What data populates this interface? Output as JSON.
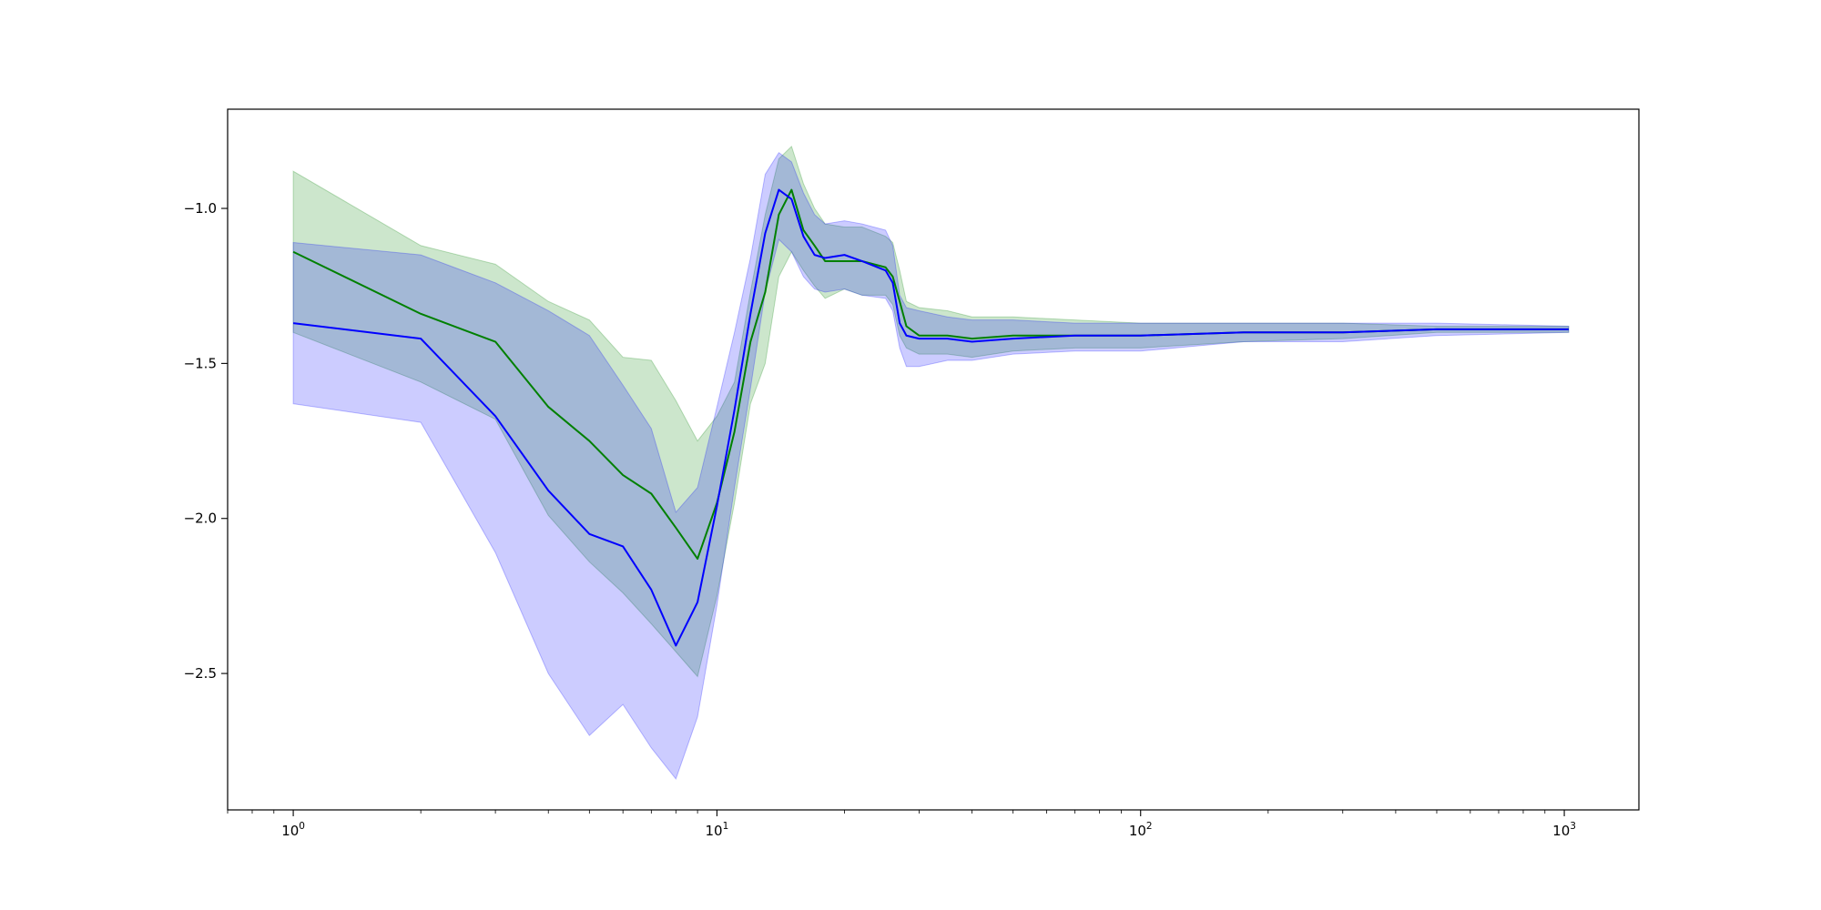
{
  "chart_data": {
    "type": "line",
    "title": "",
    "xlabel": "",
    "ylabel": "",
    "x_scale": "log",
    "y_scale": "linear",
    "xlim": [
      0.7,
      1500
    ],
    "ylim": [
      -2.94,
      -0.68
    ],
    "grid": false,
    "legend": "none",
    "x_ticks": [
      {
        "base": "10",
        "exp": "0",
        "value": 1
      },
      {
        "base": "10",
        "exp": "1",
        "value": 10
      },
      {
        "base": "10",
        "exp": "2",
        "value": 100
      },
      {
        "base": "10",
        "exp": "3",
        "value": 1000
      }
    ],
    "y_ticks": [
      {
        "label": "−1.0",
        "value": -1.0
      },
      {
        "label": "−1.5",
        "value": -1.5
      },
      {
        "label": "−2.0",
        "value": -2.0
      },
      {
        "label": "−2.5",
        "value": -2.5
      }
    ],
    "series": [
      {
        "color": "#008000",
        "band_color": "#008000",
        "band_opacity": 0.2,
        "points": [
          {
            "x": 1,
            "y": -1.14,
            "lo": -1.4,
            "hi": -0.88
          },
          {
            "x": 2,
            "y": -1.34,
            "lo": -1.56,
            "hi": -1.12
          },
          {
            "x": 3,
            "y": -1.43,
            "lo": -1.68,
            "hi": -1.18
          },
          {
            "x": 4,
            "y": -1.64,
            "lo": -1.99,
            "hi": -1.3
          },
          {
            "x": 5,
            "y": -1.75,
            "lo": -2.14,
            "hi": -1.36
          },
          {
            "x": 6,
            "y": -1.86,
            "lo": -2.24,
            "hi": -1.48
          },
          {
            "x": 7,
            "y": -1.92,
            "lo": -2.34,
            "hi": -1.49
          },
          {
            "x": 8,
            "y": -2.03,
            "lo": -2.43,
            "hi": -1.62
          },
          {
            "x": 9,
            "y": -2.13,
            "lo": -2.51,
            "hi": -1.75
          },
          {
            "x": 10,
            "y": -1.95,
            "lo": -2.25,
            "hi": -1.67
          },
          {
            "x": 11,
            "y": -1.72,
            "lo": -1.95,
            "hi": -1.56
          },
          {
            "x": 12,
            "y": -1.43,
            "lo": -1.63,
            "hi": -1.27
          },
          {
            "x": 13,
            "y": -1.27,
            "lo": -1.5,
            "hi": -1.02
          },
          {
            "x": 14,
            "y": -1.02,
            "lo": -1.22,
            "hi": -0.84
          },
          {
            "x": 15,
            "y": -0.94,
            "lo": -1.14,
            "hi": -0.8
          },
          {
            "x": 16,
            "y": -1.07,
            "lo": -1.2,
            "hi": -0.92
          },
          {
            "x": 17,
            "y": -1.12,
            "lo": -1.25,
            "hi": -1.0
          },
          {
            "x": 18,
            "y": -1.17,
            "lo": -1.29,
            "hi": -1.05
          },
          {
            "x": 20,
            "y": -1.17,
            "lo": -1.26,
            "hi": -1.06
          },
          {
            "x": 22,
            "y": -1.17,
            "lo": -1.28,
            "hi": -1.06
          },
          {
            "x": 25,
            "y": -1.19,
            "lo": -1.28,
            "hi": -1.09
          },
          {
            "x": 26,
            "y": -1.22,
            "lo": -1.31,
            "hi": -1.11
          },
          {
            "x": 27,
            "y": -1.3,
            "lo": -1.41,
            "hi": -1.2
          },
          {
            "x": 28,
            "y": -1.38,
            "lo": -1.45,
            "hi": -1.3
          },
          {
            "x": 30,
            "y": -1.41,
            "lo": -1.47,
            "hi": -1.32
          },
          {
            "x": 35,
            "y": -1.41,
            "lo": -1.47,
            "hi": -1.33
          },
          {
            "x": 40,
            "y": -1.42,
            "lo": -1.48,
            "hi": -1.35
          },
          {
            "x": 50,
            "y": -1.41,
            "lo": -1.46,
            "hi": -1.35
          },
          {
            "x": 70,
            "y": -1.41,
            "lo": -1.45,
            "hi": -1.36
          },
          {
            "x": 100,
            "y": -1.41,
            "lo": -1.45,
            "hi": -1.37
          },
          {
            "x": 175,
            "y": -1.4,
            "lo": -1.43,
            "hi": -1.37
          },
          {
            "x": 300,
            "y": -1.4,
            "lo": -1.42,
            "hi": -1.37
          },
          {
            "x": 500,
            "y": -1.39,
            "lo": -1.4,
            "hi": -1.38
          },
          {
            "x": 1024,
            "y": -1.39,
            "lo": -1.4,
            "hi": -1.38
          }
        ]
      },
      {
        "color": "#0000ff",
        "band_color": "#0000ff",
        "band_opacity": 0.2,
        "points": [
          {
            "x": 1,
            "y": -1.37,
            "lo": -1.63,
            "hi": -1.11
          },
          {
            "x": 2,
            "y": -1.42,
            "lo": -1.69,
            "hi": -1.15
          },
          {
            "x": 3,
            "y": -1.67,
            "lo": -2.11,
            "hi": -1.24
          },
          {
            "x": 4,
            "y": -1.91,
            "lo": -2.5,
            "hi": -1.33
          },
          {
            "x": 5,
            "y": -2.05,
            "lo": -2.7,
            "hi": -1.41
          },
          {
            "x": 6,
            "y": -2.09,
            "lo": -2.6,
            "hi": -1.57
          },
          {
            "x": 7,
            "y": -2.23,
            "lo": -2.74,
            "hi": -1.71
          },
          {
            "x": 8,
            "y": -2.41,
            "lo": -2.84,
            "hi": -1.98
          },
          {
            "x": 9,
            "y": -2.27,
            "lo": -2.64,
            "hi": -1.9
          },
          {
            "x": 10,
            "y": -1.96,
            "lo": -2.28,
            "hi": -1.64
          },
          {
            "x": 11,
            "y": -1.65,
            "lo": -1.9,
            "hi": -1.4
          },
          {
            "x": 12,
            "y": -1.34,
            "lo": -1.58,
            "hi": -1.16
          },
          {
            "x": 13,
            "y": -1.08,
            "lo": -1.27,
            "hi": -0.89
          },
          {
            "x": 14,
            "y": -0.94,
            "lo": -1.1,
            "hi": -0.82
          },
          {
            "x": 15,
            "y": -0.97,
            "lo": -1.14,
            "hi": -0.85
          },
          {
            "x": 16,
            "y": -1.09,
            "lo": -1.22,
            "hi": -0.95
          },
          {
            "x": 17,
            "y": -1.15,
            "lo": -1.26,
            "hi": -1.02
          },
          {
            "x": 18,
            "y": -1.16,
            "lo": -1.27,
            "hi": -1.05
          },
          {
            "x": 20,
            "y": -1.15,
            "lo": -1.26,
            "hi": -1.04
          },
          {
            "x": 22,
            "y": -1.17,
            "lo": -1.28,
            "hi": -1.05
          },
          {
            "x": 25,
            "y": -1.2,
            "lo": -1.29,
            "hi": -1.07
          },
          {
            "x": 26,
            "y": -1.24,
            "lo": -1.33,
            "hi": -1.12
          },
          {
            "x": 27,
            "y": -1.37,
            "lo": -1.45,
            "hi": -1.28
          },
          {
            "x": 28,
            "y": -1.41,
            "lo": -1.51,
            "hi": -1.32
          },
          {
            "x": 30,
            "y": -1.42,
            "lo": -1.51,
            "hi": -1.33
          },
          {
            "x": 35,
            "y": -1.42,
            "lo": -1.49,
            "hi": -1.35
          },
          {
            "x": 40,
            "y": -1.43,
            "lo": -1.49,
            "hi": -1.36
          },
          {
            "x": 50,
            "y": -1.42,
            "lo": -1.47,
            "hi": -1.36
          },
          {
            "x": 70,
            "y": -1.41,
            "lo": -1.46,
            "hi": -1.37
          },
          {
            "x": 100,
            "y": -1.41,
            "lo": -1.46,
            "hi": -1.37
          },
          {
            "x": 175,
            "y": -1.4,
            "lo": -1.43,
            "hi": -1.37
          },
          {
            "x": 300,
            "y": -1.4,
            "lo": -1.43,
            "hi": -1.37
          },
          {
            "x": 500,
            "y": -1.39,
            "lo": -1.41,
            "hi": -1.37
          },
          {
            "x": 1024,
            "y": -1.39,
            "lo": -1.4,
            "hi": -1.38
          }
        ]
      }
    ]
  }
}
